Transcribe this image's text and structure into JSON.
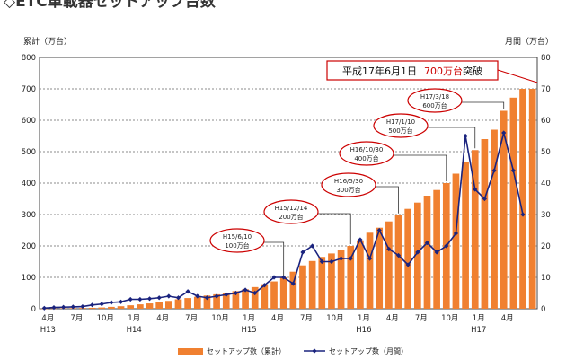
{
  "title": "◇ETC車載器セットアップ台数",
  "chart_data": {
    "type": "bar+line",
    "ylabel_left": "累計（万台）",
    "ylabel_right": "月間（万台）",
    "ylim_left": [
      0,
      800
    ],
    "ylim_right": [
      0,
      80
    ],
    "yticks_left": [
      "0",
      "100",
      "200",
      "300",
      "400",
      "500",
      "600",
      "700",
      "800"
    ],
    "yticks_right": [
      "0",
      "10",
      "20",
      "30",
      "40",
      "50",
      "60",
      "70",
      "80"
    ],
    "grid": true,
    "x_month_labels": [
      {
        "index": 0,
        "label": "4月"
      },
      {
        "index": 3,
        "label": "7月"
      },
      {
        "index": 6,
        "label": "10月"
      },
      {
        "index": 9,
        "label": "1月"
      },
      {
        "index": 12,
        "label": "4月"
      },
      {
        "index": 15,
        "label": "7月"
      },
      {
        "index": 18,
        "label": "10月"
      },
      {
        "index": 21,
        "label": "1月"
      },
      {
        "index": 24,
        "label": "4月"
      },
      {
        "index": 27,
        "label": "7月"
      },
      {
        "index": 30,
        "label": "10月"
      },
      {
        "index": 33,
        "label": "1月"
      },
      {
        "index": 36,
        "label": "4月"
      },
      {
        "index": 39,
        "label": "7月"
      },
      {
        "index": 42,
        "label": "10月"
      },
      {
        "index": 45,
        "label": "1月"
      },
      {
        "index": 48,
        "label": "4月"
      }
    ],
    "x_year_labels": [
      {
        "index": 0,
        "label": "H13"
      },
      {
        "index": 9,
        "label": "H14"
      },
      {
        "index": 21,
        "label": "H15"
      },
      {
        "index": 33,
        "label": "H16"
      },
      {
        "index": 45,
        "label": "H17"
      }
    ],
    "series": [
      {
        "name": "セットアップ数（累計）",
        "type": "bar",
        "axis": "left",
        "color": "#f08030",
        "values": [
          0.5,
          1,
          1.5,
          2,
          2.5,
          3,
          4,
          6,
          8,
          11,
          14,
          17,
          21,
          25,
          30,
          34,
          38,
          42,
          46,
          51,
          56,
          62,
          69,
          78,
          87,
          100,
          118,
          138,
          152,
          165,
          176,
          188,
          200,
          218,
          242,
          258,
          278,
          298,
          318,
          338,
          360,
          378,
          400,
          430,
          468,
          505,
          540,
          570,
          630,
          672,
          700,
          700
        ]
      },
      {
        "name": "セットアップ数（月間）",
        "type": "line",
        "axis": "right",
        "color": "#1a237e",
        "values": [
          0.2,
          0.4,
          0.5,
          0.6,
          0.7,
          1.2,
          1.5,
          2.0,
          2.2,
          3.0,
          3.0,
          3.2,
          3.5,
          4.0,
          3.5,
          5.5,
          4.0,
          3.5,
          4.0,
          4.5,
          5.0,
          6.0,
          5.0,
          7.5,
          10,
          10,
          8,
          18,
          20,
          15,
          15,
          16,
          16,
          22,
          16,
          25,
          19,
          17,
          14,
          18,
          21,
          18,
          20,
          24,
          55,
          38,
          35,
          44,
          56,
          44,
          30
        ]
      }
    ],
    "annotations": [
      {
        "line1": "H15/6/10",
        "line2": "100万台"
      },
      {
        "line1": "H15/12/14",
        "line2": "200万台"
      },
      {
        "line1": "H16/5/30",
        "line2": "300万台"
      },
      {
        "line1": "H16/10/30",
        "line2": "400万台"
      },
      {
        "line1": "H17/1/10",
        "line2": "500万台"
      },
      {
        "line1": "H17/3/18",
        "line2": "600万台"
      }
    ],
    "callout": {
      "prefix": "平成17年6月1日",
      "accent": "700万台",
      "suffix": "突破"
    },
    "legend": [
      {
        "label": "セットアップ数（累計）"
      },
      {
        "label": "セットアップ数（月間）"
      }
    ]
  }
}
